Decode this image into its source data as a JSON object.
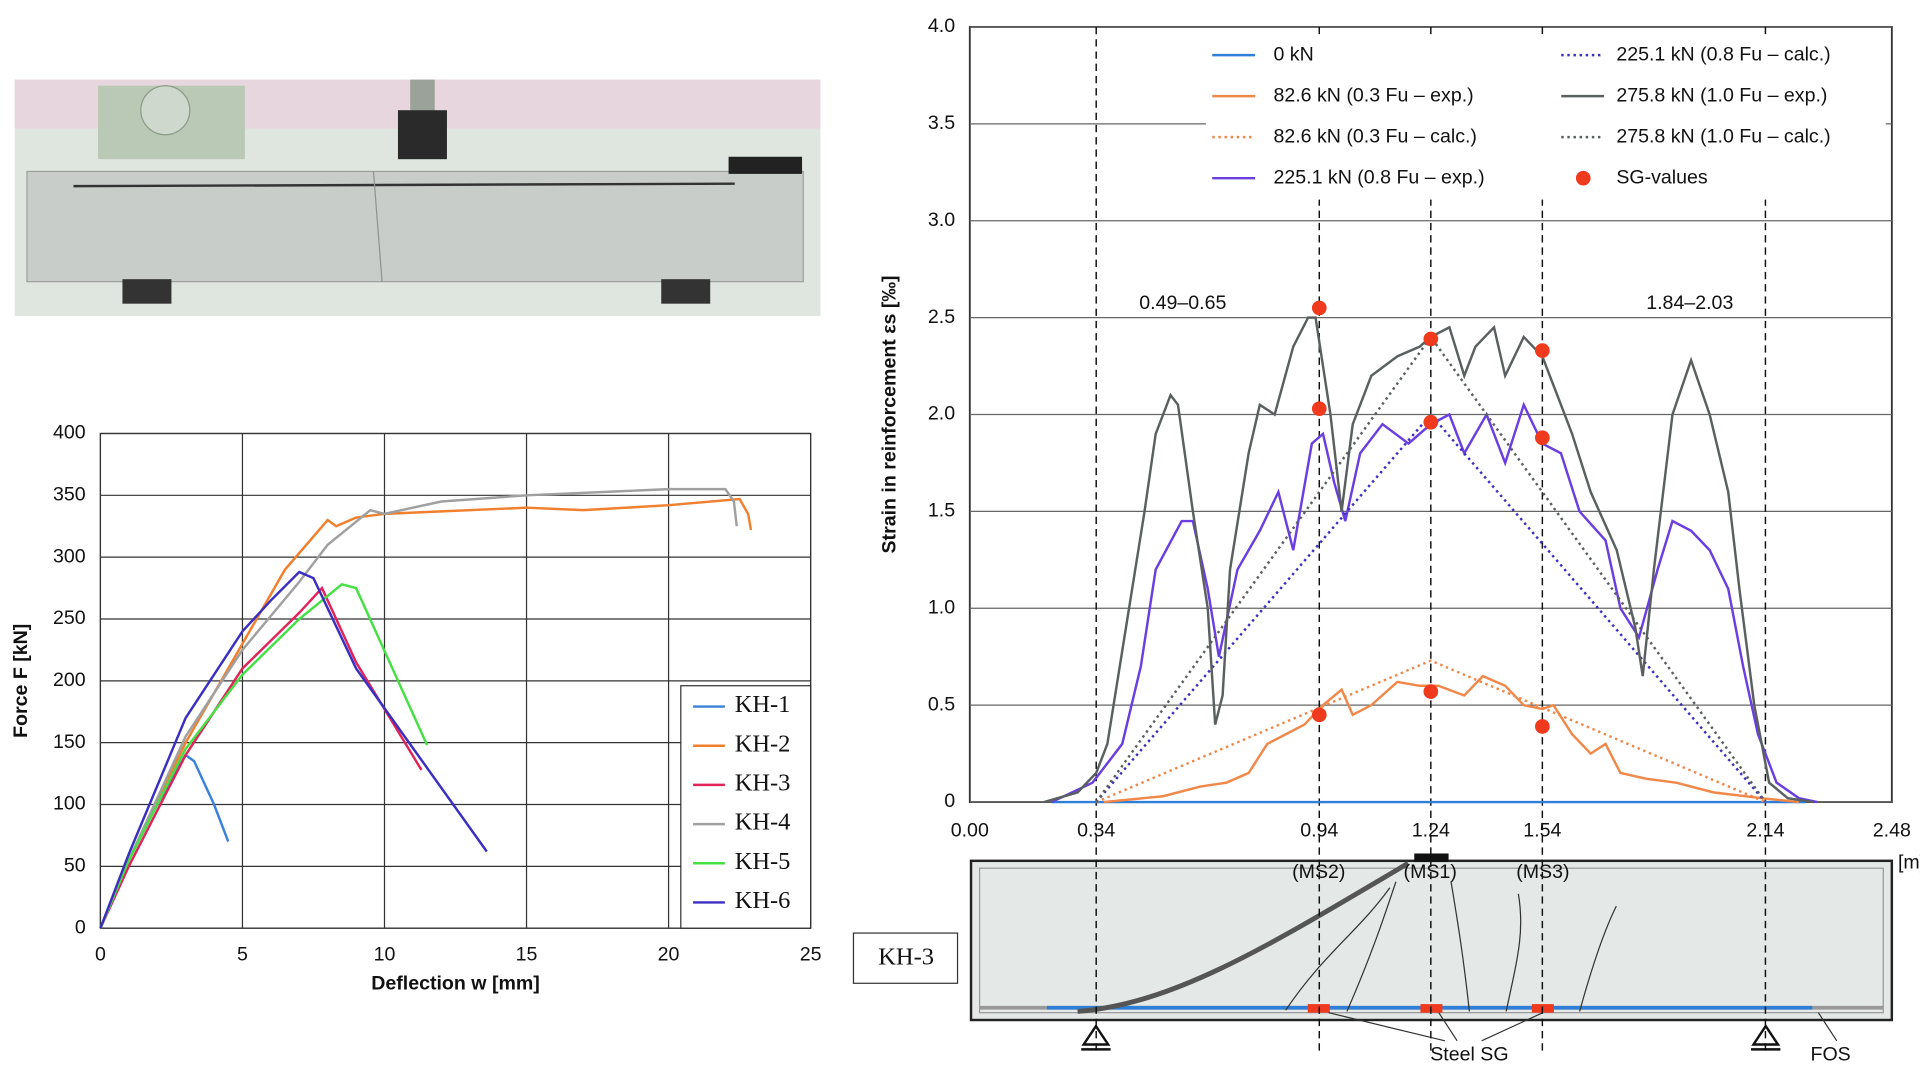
{
  "chart_data": [
    {
      "type": "line",
      "xlabel": "Deflection w [mm]",
      "ylabel": "Force F [kN]",
      "xlim": [
        0,
        25
      ],
      "ylim": [
        0,
        400
      ],
      "xticks": [
        0,
        5,
        10,
        15,
        20,
        25
      ],
      "yticks": [
        0,
        50,
        100,
        150,
        200,
        250,
        300,
        350,
        400
      ],
      "grid": "both",
      "legend": "lower right",
      "series": [
        {
          "name": "KH-1",
          "color": "#3a82d8",
          "style": "solid",
          "x": [
            0,
            1,
            2,
            3,
            3.3,
            4,
            4.5
          ],
          "values": [
            0,
            55,
            100,
            140,
            135,
            100,
            70
          ]
        },
        {
          "name": "KH-2",
          "color": "#f07f2e",
          "style": "solid",
          "x": [
            0,
            1,
            3,
            5,
            6.5,
            8,
            8.3,
            9,
            10,
            12,
            15,
            17,
            20,
            22.5,
            22.8,
            22.9
          ],
          "values": [
            0,
            55,
            150,
            230,
            290,
            330,
            325,
            332,
            335,
            337,
            340,
            338,
            342,
            347,
            335,
            322
          ]
        },
        {
          "name": "KH-3",
          "color": "#e0245a",
          "style": "solid",
          "x": [
            0,
            1,
            3,
            5,
            7,
            7.8,
            8,
            9,
            11.3
          ],
          "values": [
            0,
            50,
            140,
            210,
            255,
            275,
            265,
            215,
            128
          ]
        },
        {
          "name": "KH-4",
          "color": "#a0a0a0",
          "style": "solid",
          "x": [
            0,
            1,
            3,
            5,
            7,
            8,
            9.5,
            10,
            12,
            15,
            18,
            20,
            22,
            22.3,
            22.4
          ],
          "values": [
            0,
            55,
            155,
            225,
            280,
            310,
            338,
            335,
            345,
            350,
            353,
            355,
            355,
            345,
            325
          ]
        },
        {
          "name": "KH-5",
          "color": "#44e044",
          "style": "solid",
          "x": [
            0,
            1,
            3,
            5,
            7,
            8.5,
            9,
            11.5
          ],
          "values": [
            0,
            55,
            145,
            205,
            250,
            278,
            275,
            148
          ]
        },
        {
          "name": "KH-6",
          "color": "#3a2fc0",
          "style": "solid",
          "x": [
            0,
            1,
            3,
            5,
            6,
            7,
            7.5,
            9,
            13.6
          ],
          "values": [
            0,
            60,
            170,
            240,
            265,
            288,
            283,
            210,
            62
          ]
        }
      ]
    },
    {
      "type": "line",
      "ylabel": "Strain in reinforcement εs [‰]",
      "xunit": "[m]",
      "xlim": [
        0,
        2.48
      ],
      "ylim": [
        0,
        4
      ],
      "xticks": [
        {
          "value": 0,
          "label": "0.00"
        },
        0.34,
        0.94,
        1.24,
        1.54,
        2.14,
        2.48
      ],
      "yticks": [
        0,
        0.5,
        {
          "value": 1,
          "label": "1.0"
        },
        1.5,
        {
          "value": 2,
          "label": "2.0"
        },
        2.5,
        {
          "value": 3,
          "label": "3.0"
        },
        3.5,
        {
          "value": 4,
          "label": "4.0"
        }
      ],
      "grid": "y",
      "xtick_lines": "dashed",
      "legend": "upper center",
      "series": [
        {
          "name": "0 kN",
          "color": "#2f7fd8",
          "style": "solid",
          "x": [
            0.22,
            2.25
          ],
          "values": [
            0,
            0
          ]
        },
        {
          "name": "82.6 kN (0.3 Fu – exp.)",
          "color": "#f0884a",
          "style": "solid",
          "x": [
            0.36,
            0.52,
            0.62,
            0.69,
            0.75,
            0.8,
            0.85,
            0.9,
            0.95,
            1.0,
            1.03,
            1.08,
            1.15,
            1.21,
            1.26,
            1.33,
            1.38,
            1.44,
            1.49,
            1.54,
            1.57,
            1.62,
            1.67,
            1.71,
            1.75,
            1.82,
            1.9,
            2.0,
            2.13,
            2.23
          ],
          "values": [
            0,
            0.03,
            0.08,
            0.1,
            0.15,
            0.3,
            0.35,
            0.4,
            0.5,
            0.58,
            0.45,
            0.5,
            0.62,
            0.6,
            0.6,
            0.55,
            0.65,
            0.6,
            0.5,
            0.48,
            0.5,
            0.35,
            0.25,
            0.3,
            0.15,
            0.12,
            0.1,
            0.05,
            0.02,
            0
          ]
        },
        {
          "name": "82.6 kN (0.3 Fu – calc.)",
          "color": "#f0884a",
          "style": "dotted",
          "x": [
            0.34,
            1.24,
            2.14
          ],
          "values": [
            0,
            0.73,
            0
          ]
        },
        {
          "name": "225.1 kN (0.8 Fu – exp.)",
          "color": "#6a3ee0",
          "style": "solid",
          "x": [
            0.22,
            0.33,
            0.35,
            0.41,
            0.46,
            0.5,
            0.57,
            0.6,
            0.64,
            0.67,
            0.72,
            0.78,
            0.83,
            0.87,
            0.92,
            0.95,
            0.98,
            1.01,
            1.05,
            1.11,
            1.18,
            1.24,
            1.29,
            1.33,
            1.39,
            1.44,
            1.49,
            1.54,
            1.59,
            1.64,
            1.71,
            1.75,
            1.8,
            1.85,
            1.89,
            1.94,
            1.99,
            2.04,
            2.08,
            2.12,
            2.17,
            2.23,
            2.28
          ],
          "values": [
            0,
            0.1,
            0.15,
            0.3,
            0.7,
            1.2,
            1.45,
            1.45,
            1.1,
            0.75,
            1.2,
            1.4,
            1.6,
            1.3,
            1.85,
            1.9,
            1.65,
            1.45,
            1.8,
            1.95,
            1.85,
            1.95,
            2.0,
            1.8,
            2.0,
            1.75,
            2.05,
            1.85,
            1.8,
            1.5,
            1.35,
            1.0,
            0.85,
            1.2,
            1.45,
            1.4,
            1.3,
            1.1,
            0.7,
            0.35,
            0.1,
            0.02,
            0
          ]
        },
        {
          "name": "225.1 kN (0.8 Fu – calc.)",
          "color": "#3a2fc0",
          "style": "dotted",
          "x": [
            0.34,
            1.24,
            2.14
          ],
          "values": [
            0,
            2.0,
            0
          ]
        },
        {
          "name": "275.8 kN (1.0 Fu – exp.)",
          "color": "#5a6060",
          "style": "solid",
          "x": [
            0.2,
            0.29,
            0.34,
            0.37,
            0.42,
            0.47,
            0.5,
            0.54,
            0.56,
            0.6,
            0.64,
            0.66,
            0.68,
            0.7,
            0.75,
            0.78,
            0.82,
            0.87,
            0.91,
            0.93,
            0.97,
            1.0,
            1.03,
            1.08,
            1.15,
            1.21,
            1.24,
            1.29,
            1.33,
            1.36,
            1.41,
            1.44,
            1.49,
            1.54,
            1.58,
            1.62,
            1.67,
            1.74,
            1.79,
            1.81,
            1.84,
            1.89,
            1.94,
            1.99,
            2.04,
            2.07,
            2.11,
            2.15,
            2.2,
            2.27
          ],
          "values": [
            0,
            0.05,
            0.15,
            0.3,
            0.9,
            1.5,
            1.9,
            2.1,
            2.05,
            1.5,
            1.0,
            0.4,
            0.55,
            1.2,
            1.8,
            2.05,
            2.0,
            2.35,
            2.5,
            2.5,
            2.0,
            1.5,
            1.95,
            2.2,
            2.3,
            2.35,
            2.4,
            2.45,
            2.2,
            2.35,
            2.45,
            2.2,
            2.4,
            2.3,
            2.1,
            1.9,
            1.6,
            1.3,
            0.9,
            0.65,
            1.2,
            2.0,
            2.28,
            2.0,
            1.6,
            1.1,
            0.5,
            0.1,
            0.02,
            0
          ]
        },
        {
          "name": "275.8 kN (1.0 Fu – calc.)",
          "color": "#5a6060",
          "style": "dotted",
          "x": [
            0.34,
            1.24,
            2.14
          ],
          "values": [
            0,
            2.4,
            0
          ]
        },
        {
          "name": "SG-values",
          "color": "#f03a1e",
          "style": "marker",
          "x": [
            0.94,
            0.94,
            0.94,
            1.24,
            1.24,
            1.24,
            1.54,
            1.54,
            1.54
          ],
          "values": [
            0.45,
            2.03,
            2.55,
            0.57,
            1.96,
            2.39,
            0.39,
            1.88,
            2.33
          ]
        }
      ],
      "annotations": [
        "0.49–0.65",
        "1.84–2.03",
        "(MS2)",
        "(MS1)",
        "(MS3)",
        "KH-3",
        "Steel SG",
        "FOS"
      ]
    }
  ]
}
